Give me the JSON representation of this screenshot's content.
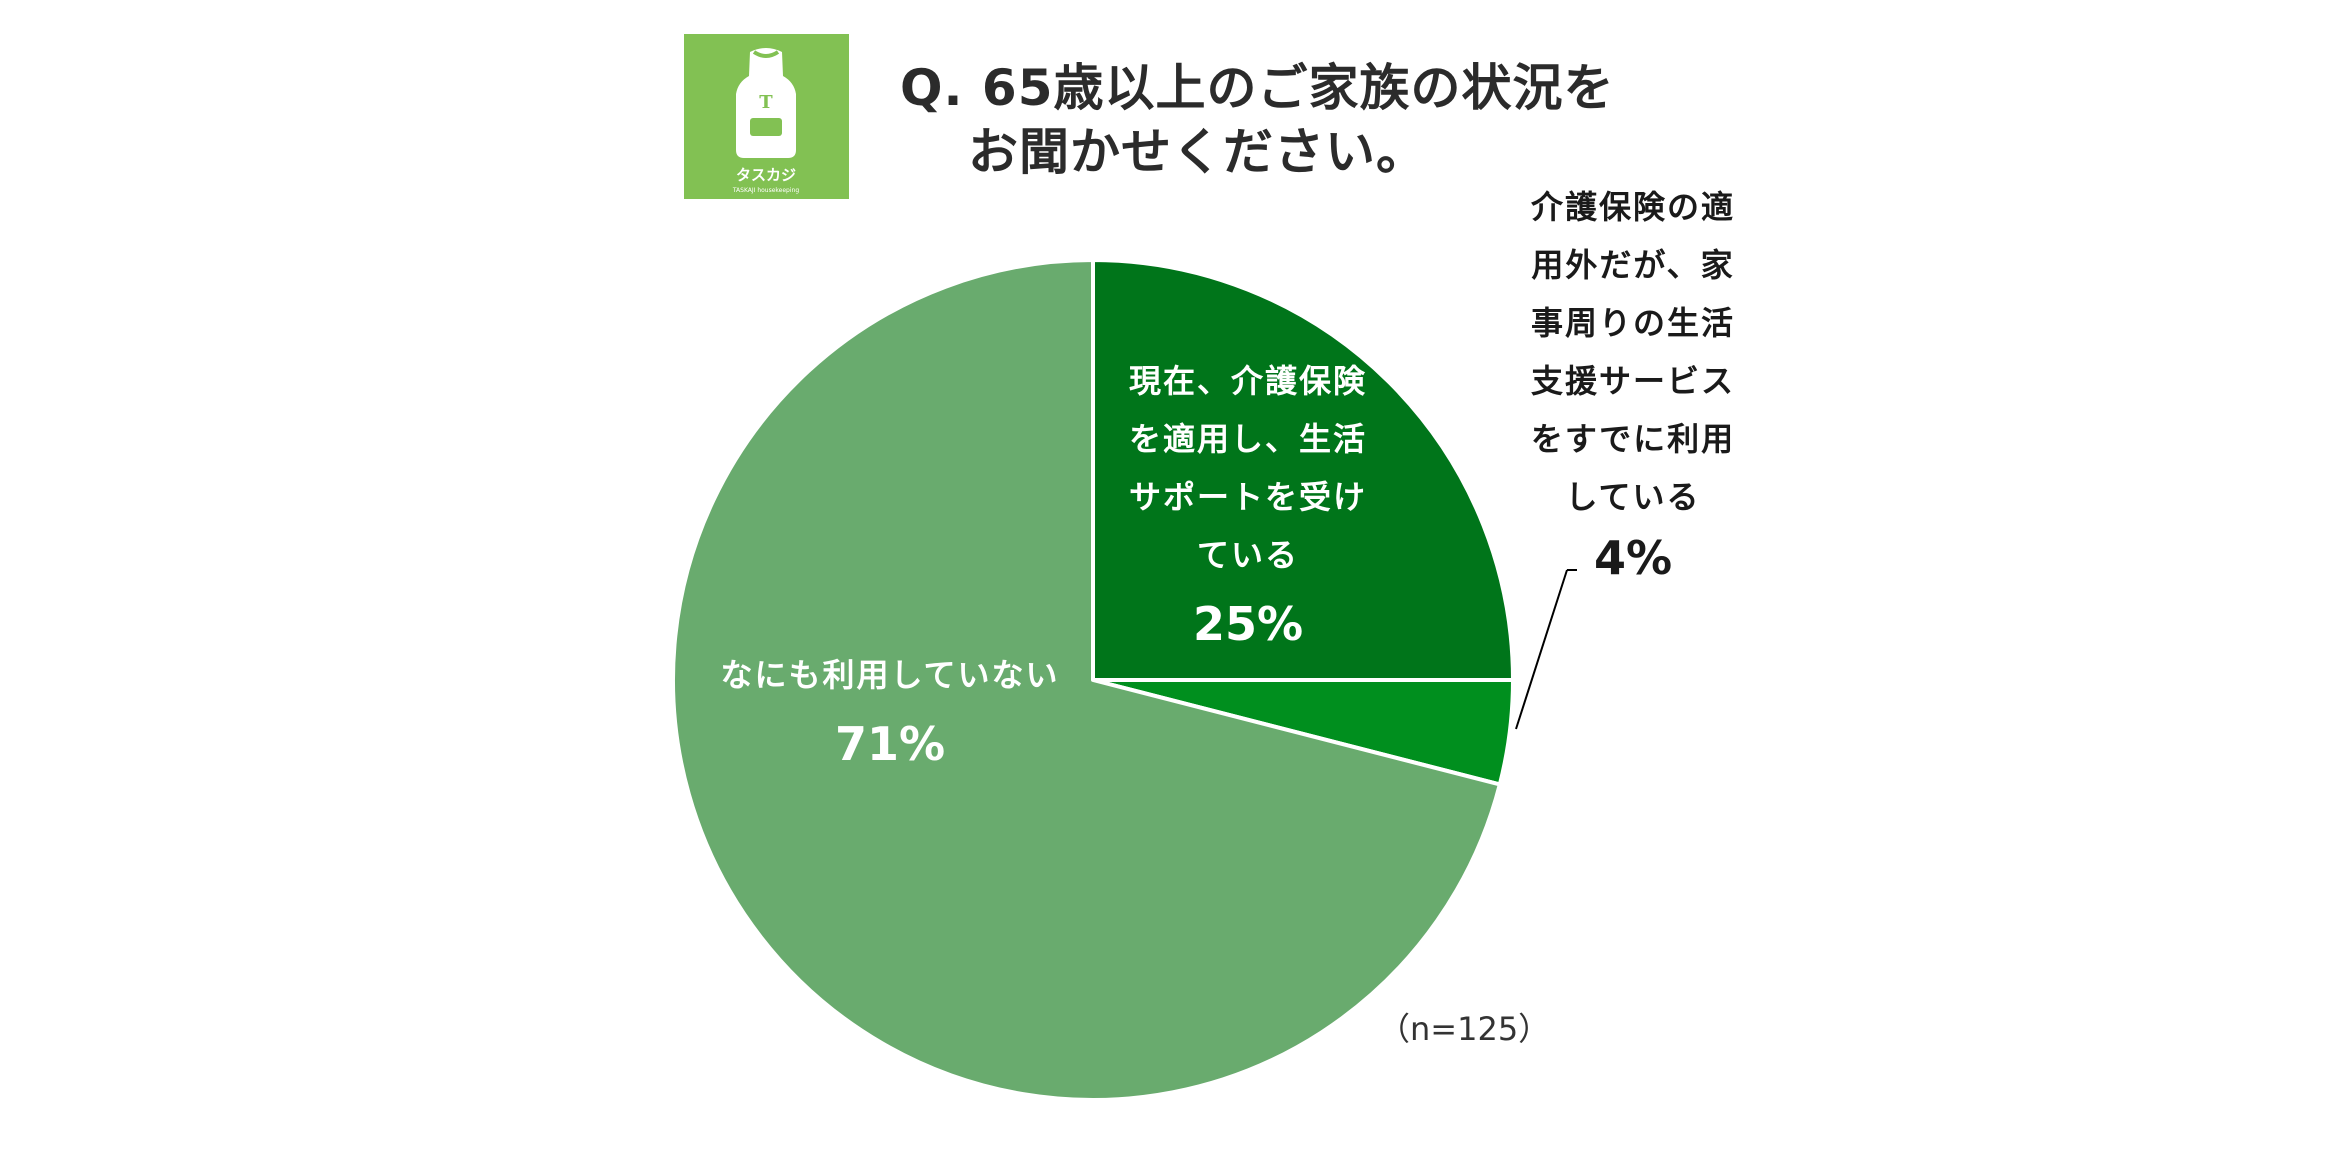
{
  "title_line1": "Q. 65歳以上のご家族の状況を",
  "title_line2": "お聞かせください。",
  "logo": {
    "letter": "T",
    "name": "タスカジ",
    "sub": "TASKAJI housekeeping",
    "bg_color": "#82c153"
  },
  "sample_note": "（n=125）",
  "chart_data": {
    "type": "pie",
    "title": "Q. 65歳以上のご家族の状況をお聞かせください。",
    "start": "12 o'clock, clockwise",
    "slices": [
      {
        "label_lines": [
          "現在、介護保険",
          "を適用し、生活",
          "サポートを受け",
          "ている"
        ],
        "value": 25,
        "value_label": "25%",
        "color": "#00751a"
      },
      {
        "label_lines": [
          "介護保険の適",
          "用外だが、家",
          "事周りの生活",
          "支援サービス",
          "をすでに利用",
          "している"
        ],
        "value": 4,
        "value_label": "4%",
        "color": "#008f1e"
      },
      {
        "label_lines": [
          "なにも利用していない"
        ],
        "value": 71,
        "value_label": "71%",
        "color": "#69ab6e"
      }
    ],
    "n": 125
  }
}
